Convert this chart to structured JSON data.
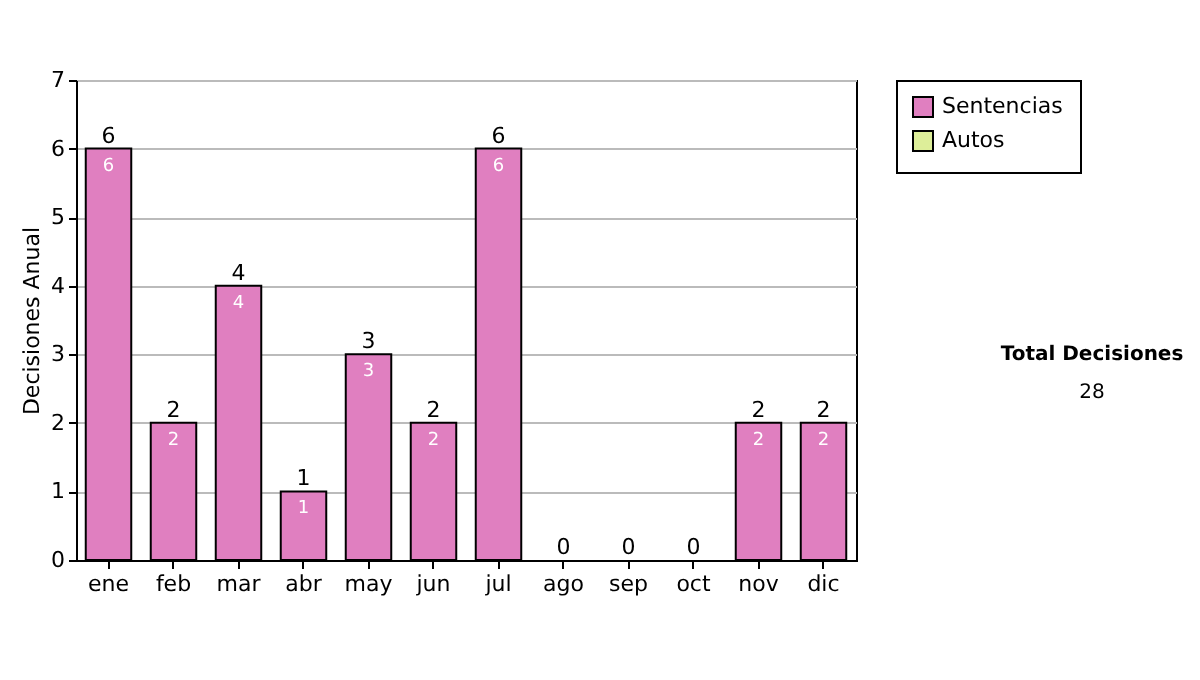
{
  "chart_data": {
    "type": "bar",
    "ylabel": "Decisiones Anual",
    "categories": [
      "ene",
      "feb",
      "mar",
      "abr",
      "may",
      "jun",
      "jul",
      "ago",
      "sep",
      "oct",
      "nov",
      "dic"
    ],
    "series": [
      {
        "name": "Sentencias",
        "color": "#e07fc0",
        "values": [
          6,
          2,
          4,
          1,
          3,
          2,
          6,
          0,
          0,
          0,
          2,
          2
        ],
        "value_labels": [
          "6",
          "2",
          "4",
          "1",
          "3",
          "2",
          "6",
          null,
          null,
          null,
          "2",
          "2"
        ]
      },
      {
        "name": "Autos",
        "color": "#ddee99",
        "values": [
          0,
          0,
          0,
          0,
          0,
          0,
          0,
          0,
          0,
          0,
          0,
          0
        ]
      }
    ],
    "totals": [
      "6",
      "2",
      "4",
      "1",
      "3",
      "2",
      "6",
      "0",
      "0",
      "0",
      "2",
      "2"
    ],
    "ylim": [
      0,
      7
    ],
    "yticks": [
      0,
      1,
      2,
      3,
      4,
      5,
      6,
      7
    ],
    "grid": "y",
    "legend": "right",
    "annotations": [
      "Total Decisiones",
      "28"
    ]
  }
}
